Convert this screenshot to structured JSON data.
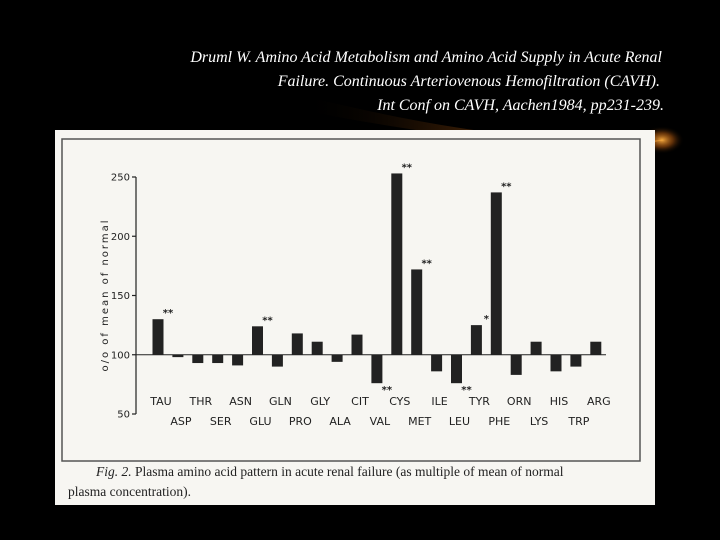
{
  "chart_data": {
    "type": "bar",
    "source": [
      "Druml W. Amino Acid Metabolism and Amino Acid Supply in Acute Renal",
      "Failure. Continuous Arteriovenous Hemofiltration (CAVH).",
      "Int Conf on CAVH, Aachen1984, pp231-239."
    ],
    "ylabel": "o/o of mean of normal",
    "caption": [
      "Fig. 2.",
      "Plasma amino acid pattern in acute renal failure (as multiple of mean of normal",
      "plasma concentration)."
    ],
    "categories": [
      "TAU",
      "ASP",
      "THR",
      "SER",
      "ASN",
      "GLU",
      "GLN",
      "PRO",
      "GLY",
      "ALA",
      "CIT",
      "VAL",
      "CYS",
      "MET",
      "ILE",
      "LEU",
      "TYR",
      "PHE",
      "ORN",
      "LYS",
      "HIS",
      "TRP",
      "ARG"
    ],
    "values": [
      130,
      98,
      93,
      93,
      91,
      124,
      90,
      118,
      111,
      94,
      117,
      76,
      253,
      172,
      86,
      76,
      125,
      237,
      83,
      111,
      86,
      90,
      111
    ],
    "significance": [
      "**",
      null,
      null,
      null,
      null,
      "**",
      null,
      null,
      null,
      null,
      null,
      "**",
      "**",
      "**",
      null,
      "**",
      "*",
      "**",
      null,
      null,
      null,
      null,
      null
    ],
    "baseline": 100,
    "color": "#222222",
    "ylim": [
      50,
      250
    ],
    "yticks": [
      50,
      100,
      150,
      200,
      250
    ]
  }
}
